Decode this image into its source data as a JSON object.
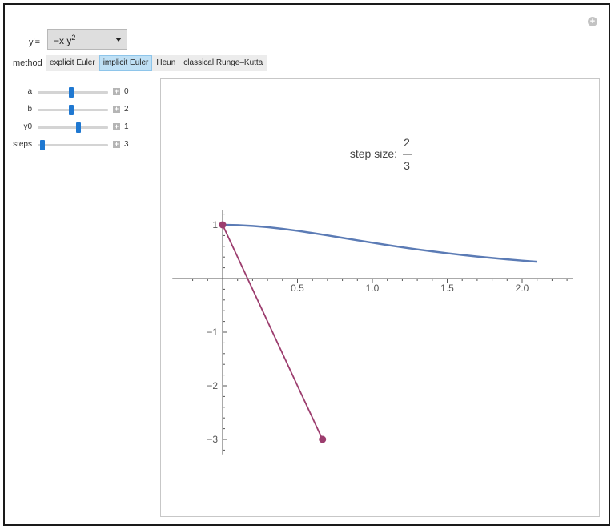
{
  "equation": {
    "label": "y'=",
    "value_base": "−x y",
    "value_exp": "2"
  },
  "method": {
    "label": "method",
    "options": [
      "explicit Euler",
      "implicit Euler",
      "Heun",
      "classical Runge–Kutta"
    ],
    "selected": "implicit Euler"
  },
  "sliders": [
    {
      "label": "a",
      "value": "0",
      "fraction": 0.48
    },
    {
      "label": "b",
      "value": "2",
      "fraction": 0.48
    },
    {
      "label": "y0",
      "value": "1",
      "fraction": 0.58
    },
    {
      "label": "steps",
      "value": "3",
      "fraction": 0.04
    }
  ],
  "plot": {
    "step_label": "step size:",
    "step_num": "2",
    "step_den": "3"
  },
  "chart_data": {
    "type": "line",
    "title": "step size: 2/3",
    "xlim": [
      -0.25,
      2.35
    ],
    "ylim": [
      -3.25,
      1.25
    ],
    "x_ticks": [
      0.5,
      1.0,
      1.5,
      2.0
    ],
    "x_tick_labels": [
      "0.5",
      "1.0",
      "1.5",
      "2.0"
    ],
    "y_ticks": [
      1,
      -1,
      -2,
      -3
    ],
    "y_tick_labels": [
      "1",
      "−1",
      "−2",
      "−3"
    ],
    "series": [
      {
        "style": "curve",
        "color": "#5b7bb5",
        "x": [
          0,
          0.1,
          0.2,
          0.3,
          0.4,
          0.5,
          0.6,
          0.7,
          0.8,
          0.9,
          1.0,
          1.1,
          1.2,
          1.3,
          1.4,
          1.5,
          1.6,
          1.7,
          1.8,
          1.9,
          2.0,
          2.1
        ],
        "y": [
          1,
          0.995,
          0.98,
          0.957,
          0.926,
          0.889,
          0.847,
          0.803,
          0.758,
          0.712,
          0.667,
          0.623,
          0.581,
          0.542,
          0.505,
          0.471,
          0.439,
          0.409,
          0.382,
          0.357,
          0.333,
          0.312
        ]
      },
      {
        "style": "markers",
        "color": "#9c3d6e",
        "x": [
          0,
          0.667
        ],
        "y": [
          1,
          -3
        ]
      }
    ]
  }
}
